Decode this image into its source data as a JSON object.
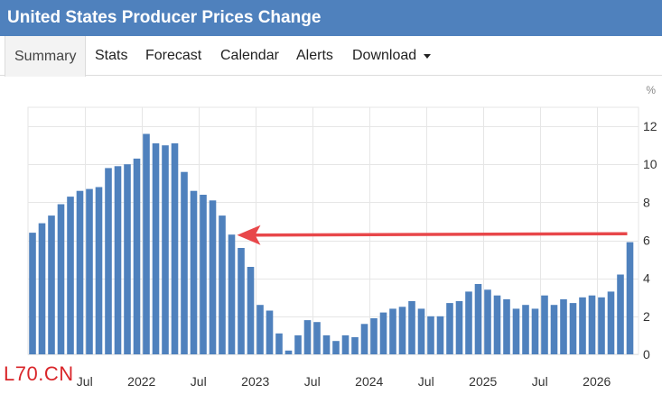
{
  "header": {
    "title": "United States Producer Prices Change"
  },
  "tabs": [
    {
      "label": "Summary"
    },
    {
      "label": "Stats"
    },
    {
      "label": "Forecast"
    },
    {
      "label": "Calendar"
    },
    {
      "label": "Alerts"
    },
    {
      "label": "Download"
    }
  ],
  "watermark": "L70.CN",
  "colors": {
    "bar": "#4f81bd",
    "arrow": "#e8474a",
    "header": "#4f81bd"
  },
  "chart_data": {
    "type": "bar",
    "unit": "%",
    "ylim": [
      0,
      13
    ],
    "yticks": [
      0,
      2,
      4,
      6,
      8,
      10,
      12
    ],
    "grid": true,
    "x_tick_labels": [
      {
        "label": "Jul",
        "index": 6
      },
      {
        "label": "2022",
        "index": 12
      },
      {
        "label": "Jul",
        "index": 18
      },
      {
        "label": "2023",
        "index": 24
      },
      {
        "label": "Jul",
        "index": 30
      },
      {
        "label": "2024",
        "index": 36
      },
      {
        "label": "Jul",
        "index": 42
      },
      {
        "label": "2025",
        "index": 48
      },
      {
        "label": "Jul",
        "index": 54
      },
      {
        "label": "2026",
        "index": 60
      }
    ],
    "values": [
      6.4,
      6.9,
      7.3,
      7.9,
      8.3,
      8.6,
      8.7,
      8.8,
      9.8,
      9.9,
      10.0,
      10.3,
      11.6,
      11.1,
      11.0,
      11.1,
      9.6,
      8.6,
      8.4,
      8.1,
      7.3,
      6.3,
      5.6,
      4.6,
      2.6,
      2.3,
      1.1,
      0.2,
      1.0,
      1.8,
      1.7,
      1.0,
      0.7,
      1.0,
      0.9,
      1.6,
      1.9,
      2.2,
      2.4,
      2.5,
      2.8,
      2.4,
      2.0,
      2.0,
      2.7,
      2.8,
      3.3,
      3.7,
      3.4,
      3.1,
      2.9,
      2.4,
      2.6,
      2.4,
      3.1,
      2.6,
      2.9,
      2.7,
      3.0,
      3.1,
      3.0,
      3.3,
      4.2,
      5.9
    ],
    "annotation": {
      "type": "arrow",
      "from_index": 63,
      "to_index": 21,
      "value": 6.3
    }
  }
}
